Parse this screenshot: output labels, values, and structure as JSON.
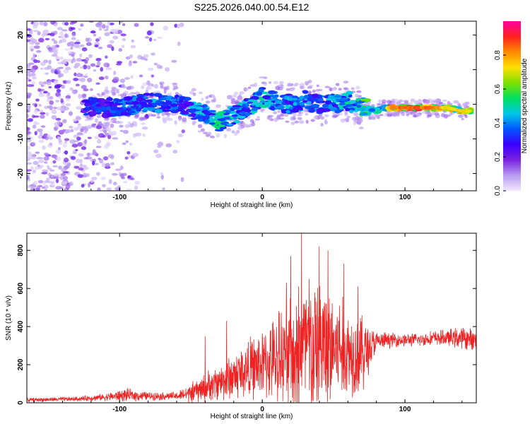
{
  "chart_data": [
    {
      "type": "heatmap",
      "title": "S225.2026.040.00.54.E12",
      "xlabel": "Height of straight line (km)",
      "ylabel": "Frequency (Hz)",
      "xlim": [
        -165,
        150
      ],
      "ylim": [
        -25,
        24
      ],
      "xticks": [
        -100,
        0,
        100
      ],
      "yticks": [
        -20,
        -10,
        0,
        10,
        20
      ],
      "colorbar": {
        "label": "Normalized spectral amplitude",
        "range": [
          0,
          1
        ],
        "ticks": [
          "0.0",
          "0.2",
          "0.4",
          "0.6",
          "0.8"
        ],
        "tick_values": [
          0,
          0.2,
          0.4,
          0.6,
          0.8
        ],
        "colormap": [
          "#f2e8ff",
          "#b89cf0",
          "#7a22e0",
          "#3b00ff",
          "#0055ff",
          "#00c8e8",
          "#00e060",
          "#7fe000",
          "#ffe000",
          "#ff8a00",
          "#ff2020",
          "#ff00a0"
        ]
      },
      "ridge": {
        "x": [
          -120,
          -100,
          -80,
          -60,
          -45,
          -35,
          -30,
          -20,
          -10,
          0,
          10,
          20,
          30,
          40,
          50,
          60,
          70,
          80,
          85,
          90,
          100,
          110,
          120,
          130,
          140,
          148
        ],
        "freq": [
          -1,
          -1,
          0.5,
          0,
          -2,
          -3.5,
          -5,
          -3,
          -1,
          2,
          1,
          0,
          1,
          0,
          0,
          1,
          -1,
          -2,
          -1,
          -1,
          -1,
          -1,
          -1,
          -1,
          -2,
          -2
        ],
        "amplitude": [
          0.35,
          0.4,
          0.45,
          0.4,
          0.45,
          0.5,
          0.55,
          0.5,
          0.45,
          0.5,
          0.45,
          0.45,
          0.45,
          0.4,
          0.45,
          0.5,
          0.6,
          0.65,
          0.7,
          0.85,
          0.9,
          0.9,
          0.88,
          0.75,
          0.8,
          0.75
        ]
      }
    },
    {
      "type": "line",
      "xlabel": "Height of straight line (km)",
      "ylabel": "SNR (10 * v/v)",
      "xlim": [
        -165,
        150
      ],
      "ylim": [
        0,
        890
      ],
      "xticks": [
        -100,
        0,
        100
      ],
      "yticks": [
        0,
        200,
        400,
        600,
        800
      ],
      "color": "#ee2222",
      "envelope": {
        "x": [
          -165,
          -130,
          -110,
          -95,
          -80,
          -60,
          -50,
          -40,
          -30,
          -20,
          -10,
          0,
          10,
          20,
          25,
          30,
          40,
          50,
          60,
          70,
          80,
          90,
          100,
          110,
          120,
          130,
          140,
          150
        ],
        "mean": [
          15,
          20,
          30,
          40,
          35,
          35,
          50,
          80,
          110,
          140,
          180,
          200,
          230,
          250,
          280,
          290,
          300,
          290,
          270,
          260,
          320,
          330,
          330,
          330,
          340,
          340,
          340,
          330
        ],
        "amp": [
          12,
          14,
          22,
          40,
          25,
          25,
          60,
          90,
          110,
          150,
          180,
          210,
          260,
          330,
          420,
          450,
          400,
          380,
          280,
          250,
          60,
          45,
          40,
          40,
          45,
          50,
          70,
          60
        ],
        "peaks": [
          [
            27.5,
            890
          ],
          [
            40,
            820
          ],
          [
            46,
            800
          ],
          [
            20,
            770
          ],
          [
            57,
            730
          ],
          [
            17,
            630
          ],
          [
            33,
            650
          ],
          [
            67,
            610
          ],
          [
            -25,
            430
          ],
          [
            -40,
            350
          ]
        ]
      }
    }
  ]
}
